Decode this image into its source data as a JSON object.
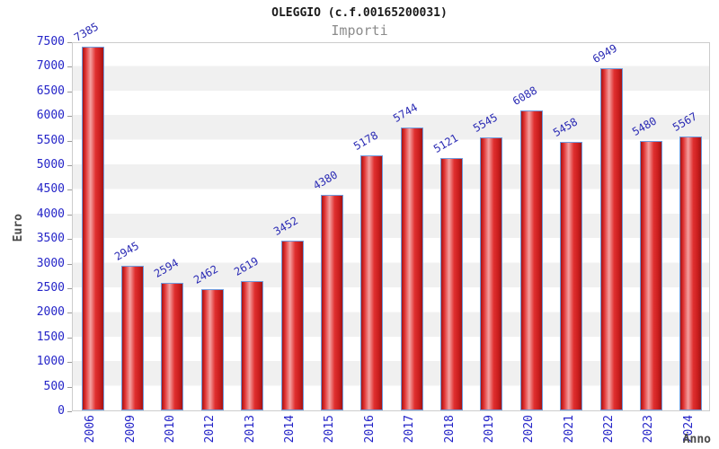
{
  "chart_data": {
    "type": "bar",
    "title": "OLEGGIO (c.f.00165200031)",
    "subtitle": "Importi",
    "xlabel": "Anno",
    "ylabel": "Euro",
    "categories": [
      "2006",
      "2009",
      "2010",
      "2012",
      "2013",
      "2014",
      "2015",
      "2016",
      "2017",
      "2018",
      "2019",
      "2020",
      "2021",
      "2022",
      "2023",
      "2024"
    ],
    "values": [
      7385,
      2945,
      2594,
      2462,
      2619,
      3452,
      4380,
      5178,
      5744,
      5121,
      5545,
      6088,
      5458,
      6949,
      5480,
      5567
    ],
    "ylim": [
      0,
      7500
    ],
    "ytick_step": 500,
    "legend": "none",
    "grid": "alternating-horizontal-bands",
    "bar_value_labels_rotation_deg": -30,
    "x_tick_labels_rotation_deg": -90,
    "colors": {
      "title_color": "#1a1a1a",
      "subtitle_color": "#8c8c8c",
      "axis_label_color": "#4a4a4a",
      "tick_label_color": "#2424c8",
      "value_label_color": "#2a2ab4",
      "bar_border": "#6f9bdd",
      "bar_dark": "#a31414",
      "bar_mid": "#e03030",
      "bar_mid2": "#cc1f1f",
      "bar_light": "#f4a0a0",
      "band_white": "#ffffff",
      "band_light": "#f0f0f0",
      "plot_border": "#cccccc"
    }
  }
}
